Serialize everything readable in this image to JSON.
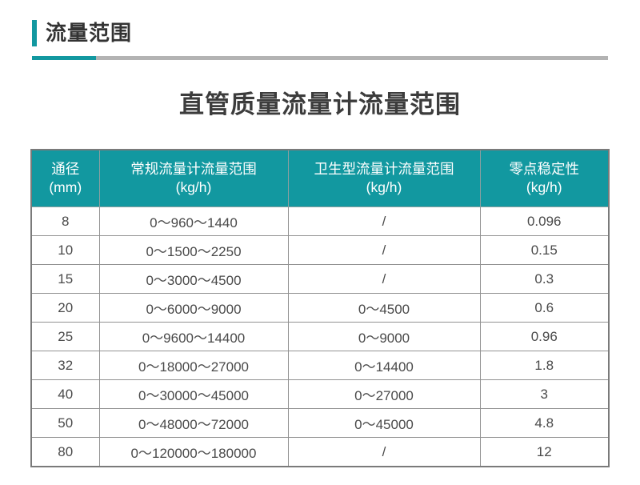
{
  "section": {
    "title": "流量范围"
  },
  "main": {
    "title": "直管质量流量计流量范围"
  },
  "colors": {
    "accent_teal": "#1298A0",
    "divider_gray": "#B3B3B3",
    "header_text": "#FFFFFF",
    "body_text": "#4A4A4A"
  },
  "table": {
    "columns": [
      {
        "label": "通径",
        "unit": "(mm)"
      },
      {
        "label": "常规流量计流量范围",
        "unit": "(kg/h)"
      },
      {
        "label": "卫生型流量计流量范围",
        "unit": "(kg/h)"
      },
      {
        "label": "零点稳定性",
        "unit": "(kg/h)"
      }
    ],
    "rows": [
      {
        "dn": "8",
        "standard": "0～960～1440",
        "sanitary": "/",
        "zero_stability": "0.096"
      },
      {
        "dn": "10",
        "standard": "0～1500～2250",
        "sanitary": "/",
        "zero_stability": "0.15"
      },
      {
        "dn": "15",
        "standard": "0～3000～4500",
        "sanitary": "/",
        "zero_stability": "0.3"
      },
      {
        "dn": "20",
        "standard": "0～6000～9000",
        "sanitary": "0～4500",
        "zero_stability": "0.6"
      },
      {
        "dn": "25",
        "standard": "0～9600～14400",
        "sanitary": "0～9000",
        "zero_stability": "0.96"
      },
      {
        "dn": "32",
        "standard": "0～18000～27000",
        "sanitary": "0～14400",
        "zero_stability": "1.8"
      },
      {
        "dn": "40",
        "standard": "0～30000～45000",
        "sanitary": "0～27000",
        "zero_stability": "3"
      },
      {
        "dn": "50",
        "standard": "0～48000～72000",
        "sanitary": "0～45000",
        "zero_stability": "4.8"
      },
      {
        "dn": "80",
        "standard": "0～120000～180000",
        "sanitary": "/",
        "zero_stability": "12"
      }
    ]
  }
}
